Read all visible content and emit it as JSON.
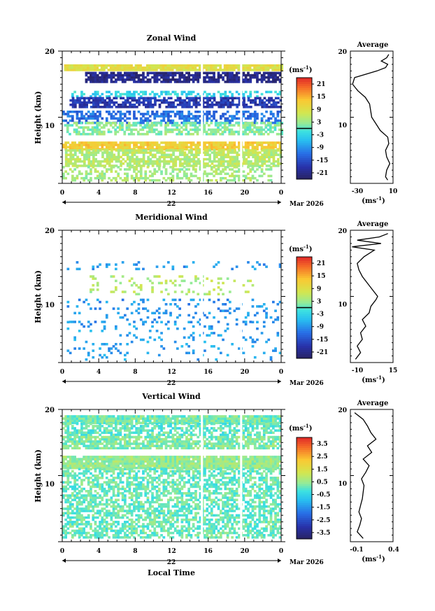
{
  "chart_data": [
    {
      "type": "heatmap",
      "title": "Zonal Wind",
      "ylabel": "Height (km)",
      "ylim": [
        0,
        20
      ],
      "y_ticks": [
        "20",
        "10"
      ],
      "x_ticks": [
        "0",
        "4",
        "8",
        "12",
        "16",
        "20",
        "0"
      ],
      "date_label": "22",
      "month_label": "Mar 2026",
      "colorbar": {
        "unit_label": "(ms",
        "unit_exp": "-1",
        "unit_close": ")",
        "levels": [
          "21",
          "15",
          "9",
          "3",
          "-3",
          "-9",
          "-15",
          "-21"
        ],
        "range": [
          -24,
          24
        ],
        "contour_at": 0
      },
      "layers": [
        {
          "y": [
            17.0,
            17.9
          ],
          "x": [
            0.2,
            24
          ],
          "value": 9,
          "cover": 0.95
        },
        {
          "y": [
            15.2,
            16.8
          ],
          "x": [
            2.5,
            24
          ],
          "value": -21,
          "cover": 0.8
        },
        {
          "y": [
            13.0,
            13.8
          ],
          "x": [
            1,
            24
          ],
          "value": -3,
          "cover": 0.4
        },
        {
          "y": [
            11.4,
            12.9
          ],
          "x": [
            0.8,
            24
          ],
          "value": -18,
          "cover": 0.75
        },
        {
          "y": [
            9.0,
            11.0
          ],
          "x": [
            0,
            24
          ],
          "value": -12,
          "cover": 0.55
        },
        {
          "y": [
            7.3,
            9.0
          ],
          "x": [
            0.2,
            24
          ],
          "value": 2,
          "cover": 0.6
        },
        {
          "y": [
            5.0,
            6.2
          ],
          "x": [
            0,
            24
          ],
          "value": 12,
          "cover": 0.9
        },
        {
          "y": [
            2.5,
            5.0
          ],
          "x": [
            0.3,
            24
          ],
          "value": 5,
          "cover": 0.75
        },
        {
          "y": [
            0.3,
            2.5
          ],
          "x": [
            0,
            23
          ],
          "value": 4,
          "cover": 0.4
        }
      ],
      "profile": {
        "title": "Average",
        "xlim": [
          -30,
          10
        ],
        "x_ticks": [
          "-30",
          "10"
        ],
        "xlabel": "(ms",
        "xlabel_exp": "-1",
        "y": [
          0.5,
          1,
          2,
          3,
          4,
          5,
          6,
          7,
          8,
          9,
          10,
          11,
          12,
          13,
          14,
          15,
          16,
          17,
          17.5,
          18,
          18.5,
          19,
          19.5
        ],
        "x": [
          5,
          3,
          4,
          7,
          4,
          3,
          6,
          5,
          -2,
          -6,
          -10,
          -11,
          -12,
          -16,
          -23,
          -28,
          -26,
          -5,
          3,
          5,
          -1,
          4,
          6
        ]
      }
    },
    {
      "type": "heatmap",
      "title": "Meridional Wind",
      "ylabel": "Height (km)",
      "ylim": [
        0,
        20
      ],
      "y_ticks": [
        "20",
        "10"
      ],
      "x_ticks": [
        "0",
        "4",
        "8",
        "12",
        "16",
        "20",
        "0"
      ],
      "date_label": "22",
      "month_label": "Mar 2026",
      "colorbar": {
        "unit_label": "(ms",
        "unit_exp": "-1",
        "unit_close": ")",
        "levels": [
          "21",
          "15",
          "9",
          "3",
          "-3",
          "-9",
          "-15",
          "-21"
        ],
        "range": [
          -24,
          24
        ],
        "contour_at": 0
      },
      "layers": [
        {
          "y": [
            14.0,
            15.2
          ],
          "x": [
            0.5,
            24
          ],
          "value": -9,
          "cover": 0.15
        },
        {
          "y": [
            10.2,
            13.0
          ],
          "x": [
            3,
            21
          ],
          "value": 5,
          "cover": 0.15
        },
        {
          "y": [
            6.0,
            9.5
          ],
          "x": [
            0.5,
            24
          ],
          "value": -9,
          "cover": 0.12
        },
        {
          "y": [
            0.3,
            6.0
          ],
          "x": [
            0.5,
            24
          ],
          "value": -8,
          "cover": 0.1
        }
      ],
      "profile": {
        "title": "Average",
        "xlim": [
          -10,
          15
        ],
        "x_ticks": [
          "-10",
          "15"
        ],
        "xlabel": "(ms",
        "xlabel_exp": "-1",
        "y": [
          0.5,
          1.5,
          2.5,
          3.5,
          4.5,
          5.5,
          6.5,
          7.5,
          8.5,
          9.5,
          10,
          11,
          12,
          13,
          14,
          15,
          16,
          17,
          17.5,
          18,
          18.5,
          19,
          19.5
        ],
        "x": [
          -7,
          -4,
          -6,
          -3,
          -4,
          -1,
          -3,
          1,
          2,
          5,
          6,
          3,
          0,
          -3,
          -5,
          -6,
          -2,
          4,
          -9,
          8,
          -6,
          7,
          12
        ]
      }
    },
    {
      "type": "heatmap",
      "title": "Vertical Wind",
      "ylabel": "Height (km)",
      "xlabel": "Local Time",
      "ylim": [
        0,
        20
      ],
      "y_ticks": [
        "20",
        "10"
      ],
      "x_ticks": [
        "0",
        "4",
        "8",
        "12",
        "16",
        "20",
        "0"
      ],
      "date_label": "22",
      "month_label": "Mar 2026",
      "colorbar": {
        "unit_label": "(ms",
        "unit_exp": "-1",
        "unit_close": ")",
        "levels": [
          "3.5",
          "2.5",
          "1.5",
          "0.5",
          "-0.5",
          "-1.5",
          "-2.5",
          "-3.5"
        ],
        "range": [
          -4,
          4
        ],
        "contour_at": null
      },
      "layers": [
        {
          "y": [
            17.8,
            18.8
          ],
          "x": [
            0,
            24
          ],
          "value": 0.2,
          "cover": 0.95
        },
        {
          "y": [
            16.0,
            17.8
          ],
          "x": [
            0,
            24
          ],
          "value": 0.0,
          "cover": 0.6
        },
        {
          "y": [
            14.0,
            16.0
          ],
          "x": [
            0,
            24
          ],
          "value": 0.3,
          "cover": 0.8
        },
        {
          "y": [
            11.0,
            13.0
          ],
          "x": [
            0,
            24
          ],
          "value": 0.5,
          "cover": 0.95
        },
        {
          "y": [
            0.5,
            11.0
          ],
          "x": [
            0,
            24
          ],
          "value": 0.1,
          "cover": 0.6
        }
      ],
      "profile": {
        "title": "Average",
        "xlim": [
          -0.1,
          0.4
        ],
        "x_ticks": [
          "-0.1",
          "0.4"
        ],
        "xlabel": "(ms",
        "xlabel_exp": "-1",
        "y": [
          0.5,
          1.5,
          2.5,
          3.5,
          4.5,
          5.5,
          6.5,
          7.5,
          8.5,
          9.5,
          10.5,
          11.5,
          12.5,
          13.5,
          14.5,
          15.5,
          16.5,
          17.5,
          18.5,
          19.5
        ],
        "x": [
          0.05,
          -0.02,
          0.01,
          0.03,
          0.0,
          0.02,
          0.04,
          0.05,
          0.06,
          0.03,
          0.08,
          0.12,
          0.05,
          0.15,
          0.1,
          0.2,
          0.14,
          0.1,
          0.05,
          -0.05
        ]
      }
    }
  ]
}
